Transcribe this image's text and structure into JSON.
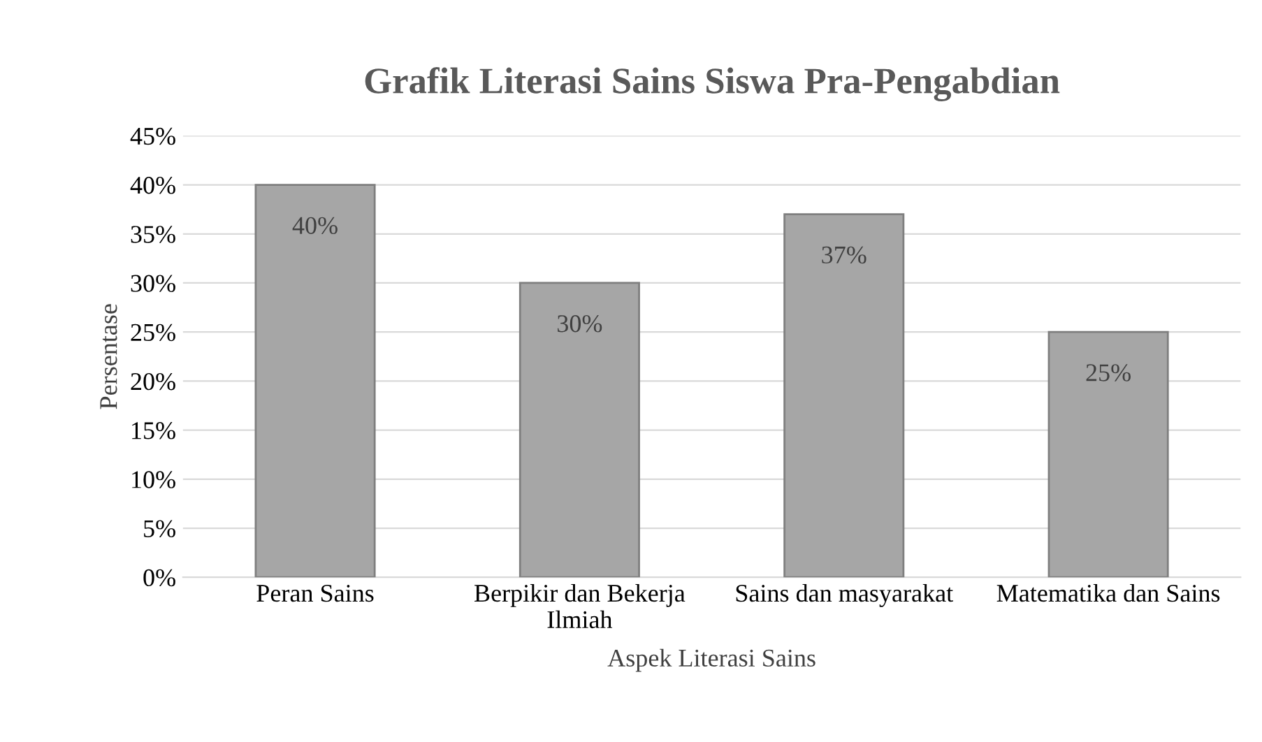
{
  "chart_data": {
    "type": "bar",
    "title": "Grafik Literasi Sains Siswa Pra-Pengabdian",
    "xlabel": "Aspek Literasi Sains",
    "ylabel": "Persentase",
    "categories": [
      "Peran Sains",
      "Berpikir dan Bekerja Ilmiah",
      "Sains dan masyarakat",
      "Matematika dan Sains"
    ],
    "values": [
      40,
      30,
      37,
      25
    ],
    "value_labels": [
      "40%",
      "30%",
      "37%",
      "25%"
    ],
    "color": "#a6a6a6",
    "ylim": [
      0,
      45
    ],
    "yticks": [
      {
        "value": 0,
        "label": "0%"
      },
      {
        "value": 5,
        "label": "5%"
      },
      {
        "value": 10,
        "label": "10%"
      },
      {
        "value": 15,
        "label": "15%"
      },
      {
        "value": 20,
        "label": "20%"
      },
      {
        "value": 25,
        "label": "25%"
      },
      {
        "value": 30,
        "label": "30%"
      },
      {
        "value": 35,
        "label": "35%"
      },
      {
        "value": 40,
        "label": "40%"
      },
      {
        "value": 45,
        "label": "45%"
      }
    ],
    "grid": "y",
    "legend": false
  }
}
